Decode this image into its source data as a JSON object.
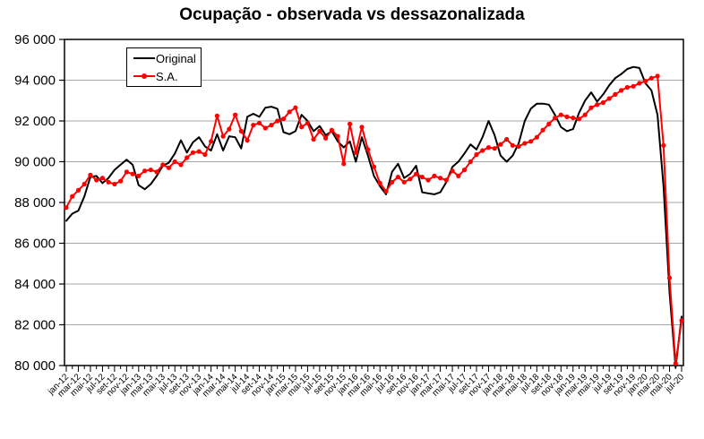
{
  "title": "Ocupação - observada vs dessazonalizada",
  "legend": {
    "items": [
      {
        "label": "Original",
        "color": "#000000",
        "marker": "none"
      },
      {
        "label": "S.A.",
        "color": "#ff0000",
        "marker": "circle"
      }
    ]
  },
  "chart_data": {
    "type": "line",
    "title": "Ocupação - observada vs dessazonalizada",
    "xlabel": "",
    "ylabel": "",
    "grid": "horizontal-only",
    "legend_position": "top-left-inside",
    "ylim": [
      80000,
      96000
    ],
    "y_ticks": {
      "values": [
        80000,
        82000,
        84000,
        86000,
        88000,
        90000,
        92000,
        94000,
        96000
      ],
      "labels": [
        "80 000",
        "82 000",
        "84 000",
        "86 000",
        "88 000",
        "90 000",
        "92 000",
        "94 000",
        "96 000"
      ]
    },
    "n_points": 103,
    "x_label_every": 2,
    "x_labels": [
      "jan-12",
      "mar-12",
      "mai-12",
      "jul-12",
      "set-12",
      "nov-12",
      "jan-13",
      "mar-13",
      "mai-13",
      "jul-13",
      "set-13",
      "nov-13",
      "jan-14",
      "mar-14",
      "mai-14",
      "jul-14",
      "set-14",
      "nov-14",
      "jan-15",
      "mar-15",
      "mai-15",
      "jul-15",
      "set-15",
      "nov-15",
      "jan-16",
      "mar-16",
      "mai-16",
      "jul-16",
      "set-16",
      "nov-16",
      "jan-17",
      "mar-17",
      "mai-17",
      "jul-17",
      "set-17",
      "nov-17",
      "jan-18",
      "mar-18",
      "mai-18",
      "jul-18",
      "set-18",
      "nov-18",
      "jan-19",
      "mar-19",
      "mai-19",
      "jul-19",
      "set-19",
      "nov-19",
      "jan-20",
      "mar-20",
      "mai-20",
      "jul-20"
    ],
    "series": [
      {
        "name": "Original",
        "color": "#000000",
        "marker": "none",
        "values": [
          87100,
          87450,
          87600,
          88300,
          89250,
          89300,
          88950,
          89200,
          89600,
          89850,
          90100,
          89850,
          88850,
          88650,
          88900,
          89300,
          89800,
          89950,
          90400,
          91050,
          90450,
          90950,
          91200,
          90750,
          90550,
          91350,
          90550,
          91250,
          91200,
          90650,
          92200,
          92350,
          92200,
          92650,
          92700,
          92600,
          91450,
          91350,
          91500,
          92300,
          92000,
          91500,
          91750,
          91300,
          91500,
          91000,
          90700,
          91000,
          90000,
          91200,
          90300,
          89300,
          88800,
          88400,
          89500,
          89900,
          89200,
          89400,
          89800,
          88500,
          88450,
          88400,
          88500,
          89000,
          89750,
          90000,
          90400,
          90850,
          90600,
          91200,
          92000,
          91300,
          90300,
          90000,
          90300,
          90900,
          92000,
          92600,
          92850,
          92850,
          92800,
          92300,
          91700,
          91500,
          91600,
          92400,
          93000,
          93400,
          92950,
          93300,
          93750,
          94100,
          94300,
          94550,
          94650,
          94600,
          93850,
          93500,
          92300,
          88800,
          83600,
          79900,
          82400
        ]
      },
      {
        "name": "S.A.",
        "color": "#ff0000",
        "marker": "circle",
        "values": [
          87750,
          88300,
          88600,
          88900,
          89350,
          89100,
          89200,
          89000,
          88900,
          89050,
          89500,
          89400,
          89300,
          89550,
          89600,
          89500,
          89850,
          89700,
          90000,
          89850,
          90200,
          90450,
          90500,
          90350,
          91000,
          92250,
          91250,
          91600,
          92300,
          91500,
          91050,
          91800,
          91900,
          91650,
          91800,
          92000,
          92100,
          92450,
          92650,
          91700,
          91900,
          91100,
          91500,
          91150,
          91550,
          91250,
          89900,
          91850,
          90450,
          91700,
          90600,
          89750,
          88950,
          88550,
          89000,
          89250,
          89000,
          89150,
          89400,
          89250,
          89100,
          89300,
          89200,
          89100,
          89550,
          89300,
          89600,
          90000,
          90350,
          90550,
          90700,
          90650,
          90850,
          91100,
          90800,
          90750,
          90900,
          91000,
          91200,
          91550,
          91850,
          92150,
          92300,
          92200,
          92150,
          92100,
          92300,
          92650,
          92800,
          92900,
          93100,
          93300,
          93500,
          93650,
          93700,
          93850,
          93950,
          94100,
          94200,
          90800,
          84300,
          80100,
          82200
        ]
      }
    ]
  }
}
